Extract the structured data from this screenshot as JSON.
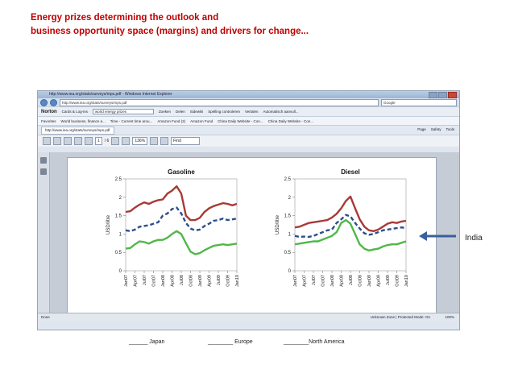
{
  "slide": {
    "title_line1": "Energy prizes determining the outlook and",
    "title_line2": "business opportunity space (margins) and drivers for change...",
    "legend": {
      "japan": "______ Japan",
      "europe": "________ Europe",
      "north_america": "________North America"
    },
    "annotation": "India",
    "colors": {
      "title": "#c00000",
      "japan": "#a83a36",
      "europe": "#2e4e8c",
      "north_america": "#4fb848",
      "arrow": "#3a5f9e"
    }
  },
  "browser": {
    "window_title": "http://www.iea.org/stats/surveys/mps.pdf - Windows Internet Explorer",
    "address": "http://www.iea.org/stats/surveys/mps.pdf",
    "search": "Google",
    "toolbar": {
      "norton": "Norton",
      "identity": "Cards & Log-ins",
      "search_field": "world energy prizes",
      "items": [
        "Zoeken",
        "Delen",
        "Sidewiki",
        "Spelling controleren",
        "Vertalen",
        "Automatisch aanvull..."
      ]
    },
    "favorites": [
      "Favorites",
      "World business, finance a...",
      "Time - Current time arou...",
      "Amazon Fund (2)",
      "Amazon Fund",
      "China Daily Website - Con...",
      "China Daily Website - Con..."
    ],
    "tab_label": "http://www.iea.org/stats/surveys/mps.pdf",
    "tab_tools": [
      "Page",
      "Safety",
      "Tools"
    ],
    "pdf_toolbar": {
      "page": "1",
      "of": "/ 6",
      "zoom": "136%",
      "find": "Find"
    },
    "status_left": "Done",
    "status_right": "Unknown Zone | Protected Mode: On",
    "status_zoom": "100%"
  },
  "chart_data": [
    {
      "type": "line",
      "title": "Gasoline",
      "ylabel": "USD/litre",
      "ylim": [
        0,
        2.5
      ],
      "yticks": [
        "0",
        "0.5",
        "1",
        "1.5",
        "2",
        "2.5"
      ],
      "x_ticks": [
        "Jan07",
        "Apr07",
        "Jul07",
        "Oct07",
        "Jan08",
        "Apr08",
        "Jul08",
        "Oct08",
        "Jan09",
        "Apr09",
        "Jul09",
        "Oct09",
        "Jan10"
      ],
      "series": [
        {
          "name": "Japan",
          "values": [
            1.6,
            1.62,
            1.72,
            1.8,
            1.86,
            1.82,
            1.88,
            1.92,
            1.94,
            2.1,
            2.18,
            2.3,
            2.1,
            1.5,
            1.38,
            1.38,
            1.44,
            1.6,
            1.7,
            1.76,
            1.8,
            1.84,
            1.82,
            1.78,
            1.82
          ]
        },
        {
          "name": "Europe",
          "values": [
            1.1,
            1.08,
            1.12,
            1.2,
            1.22,
            1.24,
            1.28,
            1.32,
            1.5,
            1.56,
            1.68,
            1.72,
            1.56,
            1.3,
            1.15,
            1.1,
            1.12,
            1.22,
            1.28,
            1.36,
            1.38,
            1.42,
            1.38,
            1.4,
            1.42
          ]
        },
        {
          "name": "North America",
          "values": [
            0.6,
            0.62,
            0.72,
            0.8,
            0.78,
            0.74,
            0.8,
            0.84,
            0.84,
            0.9,
            1.0,
            1.08,
            1.0,
            0.75,
            0.52,
            0.45,
            0.48,
            0.56,
            0.62,
            0.68,
            0.7,
            0.72,
            0.7,
            0.72,
            0.74
          ]
        }
      ]
    },
    {
      "type": "line",
      "title": "Diesel",
      "ylabel": "USD/litre",
      "ylim": [
        0,
        2.5
      ],
      "yticks": [
        "0",
        "0.5",
        "1",
        "1.5",
        "2",
        "2.5"
      ],
      "x_ticks": [
        "Jan07",
        "Apr07",
        "Jul07",
        "Oct07",
        "Jan08",
        "Apr08",
        "Jul08",
        "Oct08",
        "Jan09",
        "Apr09",
        "Jul09",
        "Oct09",
        "Jan10"
      ],
      "series": [
        {
          "name": "Japan",
          "values": [
            1.18,
            1.2,
            1.25,
            1.3,
            1.32,
            1.34,
            1.36,
            1.38,
            1.45,
            1.55,
            1.7,
            1.9,
            2.02,
            1.7,
            1.4,
            1.2,
            1.1,
            1.08,
            1.12,
            1.2,
            1.28,
            1.32,
            1.3,
            1.34,
            1.36
          ]
        },
        {
          "name": "Europe",
          "values": [
            0.95,
            0.92,
            0.93,
            0.92,
            0.95,
            1.0,
            1.05,
            1.1,
            1.12,
            1.3,
            1.4,
            1.52,
            1.48,
            1.3,
            1.15,
            1.02,
            0.98,
            1.0,
            1.05,
            1.1,
            1.12,
            1.14,
            1.16,
            1.18,
            1.16
          ]
        },
        {
          "name": "North America",
          "values": [
            0.72,
            0.74,
            0.76,
            0.78,
            0.8,
            0.8,
            0.85,
            0.9,
            0.95,
            1.05,
            1.3,
            1.38,
            1.28,
            1.0,
            0.72,
            0.6,
            0.55,
            0.58,
            0.6,
            0.66,
            0.7,
            0.72,
            0.72,
            0.76,
            0.8
          ]
        }
      ]
    }
  ]
}
